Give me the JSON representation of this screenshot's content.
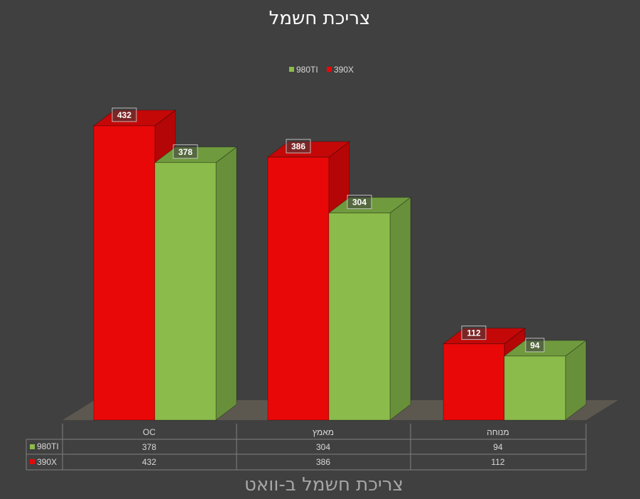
{
  "chart_data": {
    "type": "bar",
    "title": "צריכת חשמל",
    "xlabel": "צריכת חשמל ב-וואט",
    "ylabel": "",
    "categories": [
      "OC",
      "מאמץ",
      "מנוחה"
    ],
    "series": [
      {
        "name": "390X",
        "values": [
          432,
          386,
          112
        ],
        "color": "#e80808"
      },
      {
        "name": "980TI",
        "values": [
          378,
          304,
          94
        ],
        "color": "#8bbc4b"
      }
    ],
    "legend": [
      "980TI",
      "390X"
    ],
    "legend_position": "top",
    "data_table": true,
    "grid": false,
    "ylim": [
      0,
      432
    ]
  }
}
